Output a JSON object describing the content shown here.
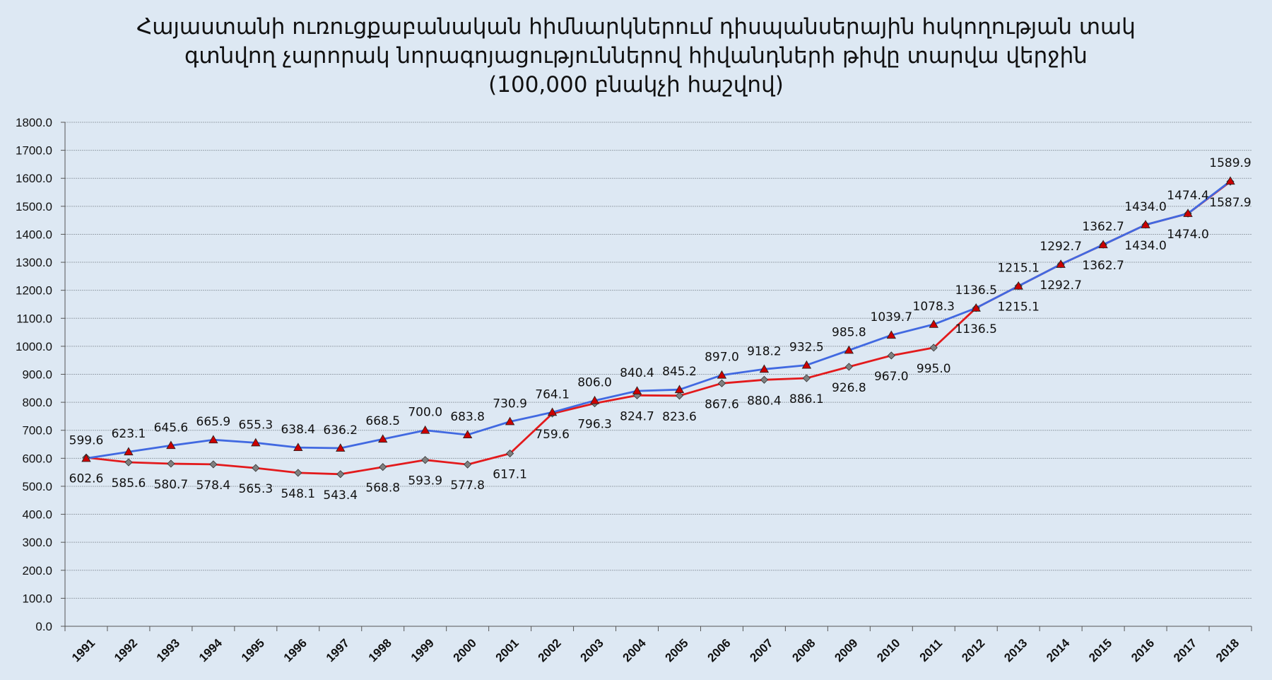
{
  "chart_data": {
    "type": "line",
    "title_lines": [
      "Հայաստանի ուռուցքաբանական հիմնարկներում դիսպանսերային հսկողության տակ",
      "գտնվող չարորակ նորագոյացություններով հիվանդների թիվը տարվա վերջին",
      "(100,000 բնակչի հաշվով)"
    ],
    "xlabel": "",
    "ylabel": "",
    "ylim": [
      0,
      1800
    ],
    "ytick_step": 100,
    "ytick_labels": [
      "0.0",
      "100.0",
      "200.0",
      "300.0",
      "400.0",
      "500.0",
      "600.0",
      "700.0",
      "800.0",
      "900.0",
      "1000.0",
      "1100.0",
      "1200.0",
      "1300.0",
      "1400.0",
      "1500.0",
      "1600.0",
      "1700.0",
      "1800.0"
    ],
    "grid": true,
    "legend": "none",
    "categories": [
      "1991",
      "1992",
      "1993",
      "1994",
      "1995",
      "1996",
      "1997",
      "1998",
      "1999",
      "2000",
      "2001",
      "2002",
      "2003",
      "2004",
      "2005",
      "2006",
      "2007",
      "2008",
      "2009",
      "2010",
      "2011",
      "2012",
      "2013",
      "2014",
      "2015",
      "2016",
      "2017",
      "2018"
    ],
    "series": [
      {
        "color": "#4169e1",
        "marker": "triangle",
        "marker_color": "#cc0000",
        "values": [
          599.6,
          623.1,
          645.6,
          665.9,
          655.3,
          638.4,
          636.2,
          668.5,
          700.0,
          683.8,
          730.9,
          764.1,
          806.0,
          840.4,
          845.2,
          897.0,
          918.2,
          932.5,
          985.8,
          1039.7,
          1078.3,
          1136.5,
          1215.1,
          1292.7,
          1362.7,
          1434.0,
          1474.4,
          1589.9
        ],
        "labels": [
          "599.6",
          "623.1",
          "645.6",
          "665.9",
          "655.3",
          "638.4",
          "636.2",
          "668.5",
          "700.0",
          "683.8",
          "730.9",
          "764.1",
          "806.0",
          "840.4",
          "845.2",
          "897.0",
          "918.2",
          "932.5",
          "985.8",
          "1039.7",
          "1078.3",
          "1136.5",
          "1215.1",
          "1292.7",
          "1362.7",
          "1434.0",
          "1474.4",
          "1589.9"
        ]
      },
      {
        "color": "#e31a1c",
        "marker": "diamond",
        "marker_color": "#808080",
        "values": [
          602.6,
          585.6,
          580.7,
          578.4,
          565.3,
          548.1,
          543.4,
          568.8,
          593.9,
          577.8,
          617.1,
          759.6,
          796.3,
          824.7,
          823.6,
          867.6,
          880.4,
          886.1,
          926.8,
          967.0,
          995.0,
          1136.5,
          1215.1,
          1292.7,
          1362.7,
          1434.0,
          1474.0,
          1587.9
        ],
        "labels": [
          "602.6",
          "585.6",
          "580.7",
          "578.4",
          "565.3",
          "548.1",
          "543.4",
          "568.8",
          "593.9",
          "577.8",
          "617.1",
          "759.6",
          "796.3",
          "824.7",
          "823.6",
          "867.6",
          "880.4",
          "886.1",
          "926.8",
          "967.0",
          "995.0",
          "1136.5",
          "1215.1",
          "1292.7",
          "1362.7",
          "1434.0",
          "1474.0",
          "1587.9"
        ]
      }
    ]
  }
}
